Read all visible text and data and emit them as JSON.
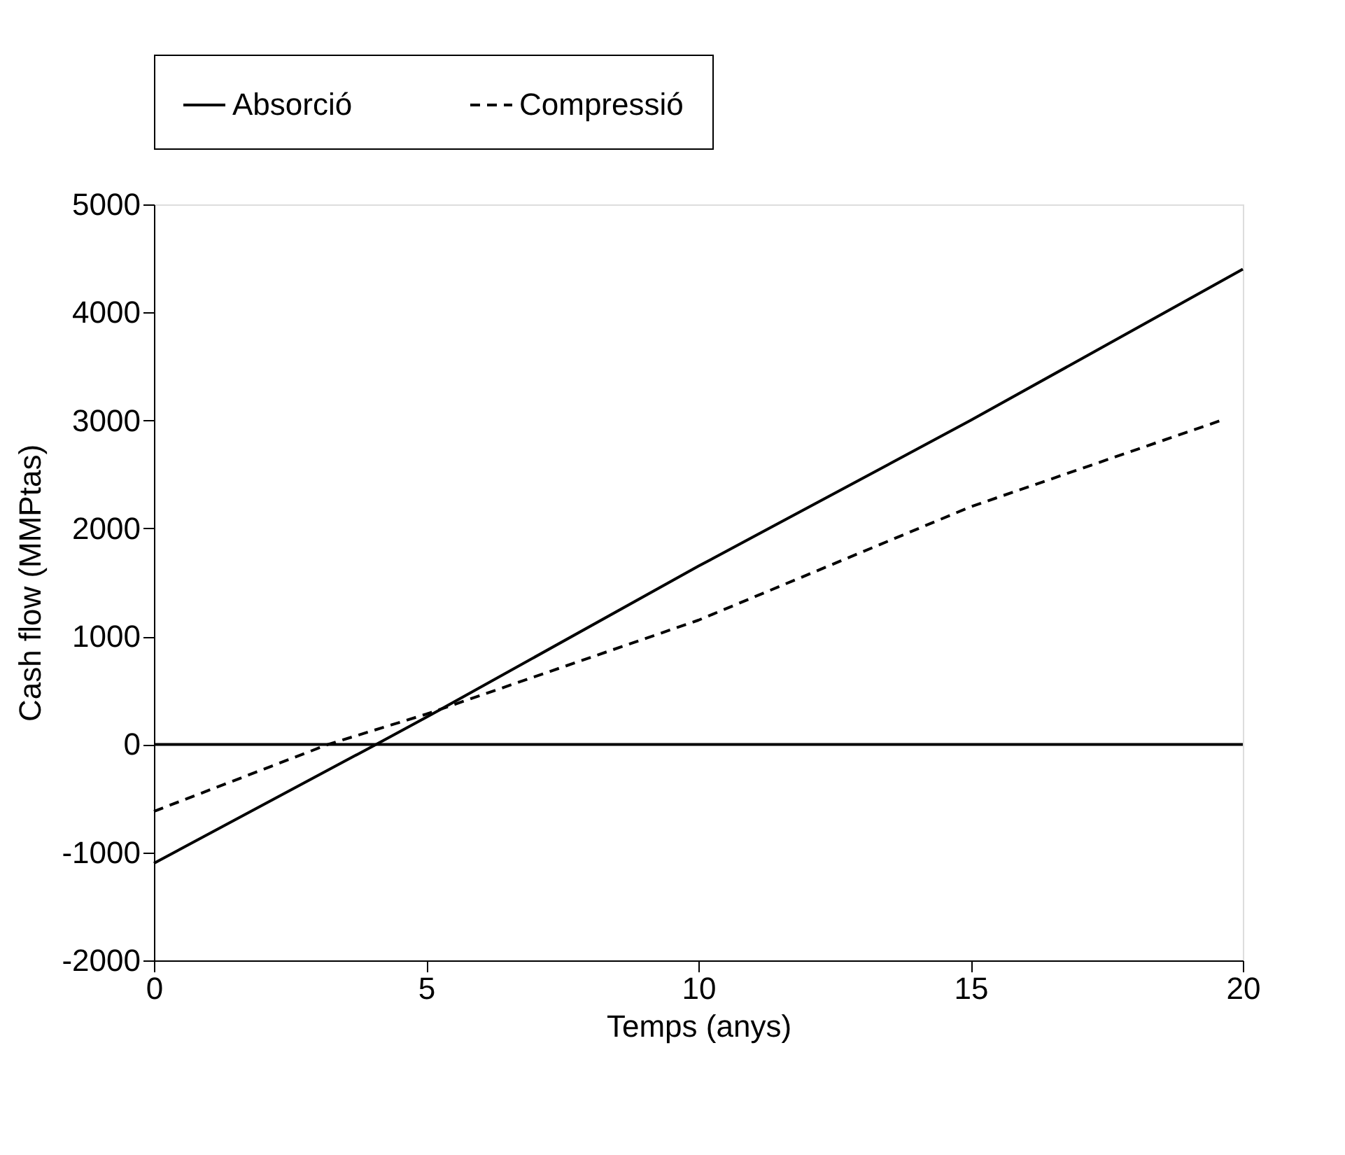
{
  "chart_data": {
    "type": "line",
    "xlabel": "Temps (anys)",
    "ylabel": "Cash flow (MMPtas)",
    "xlim": [
      0,
      20
    ],
    "xticks": [
      0,
      5,
      10,
      15,
      20
    ],
    "ylim": [
      -2000,
      5000
    ],
    "yticks": [
      -2000,
      -1000,
      0,
      1000,
      2000,
      3000,
      4000,
      5000
    ],
    "series": [
      {
        "name": "Absorció",
        "color": "#000000",
        "line_style": "solid",
        "x": [
          0,
          4.08,
          5,
          10,
          15,
          20
        ],
        "values": [
          -1100,
          0,
          250,
          1650,
          3000,
          4400
        ]
      },
      {
        "name": "Compressió",
        "color": "#000000",
        "line_style": "dashed",
        "x": [
          0,
          3.2,
          5,
          10,
          15,
          19.6
        ],
        "values": [
          -620,
          0,
          280,
          1150,
          2200,
          3000
        ]
      }
    ],
    "ref_lines": [
      {
        "axis": "y",
        "value": 0,
        "color": "#000000",
        "line_style": "solid"
      }
    ],
    "legend": "top",
    "grid": false,
    "marker": "none"
  }
}
